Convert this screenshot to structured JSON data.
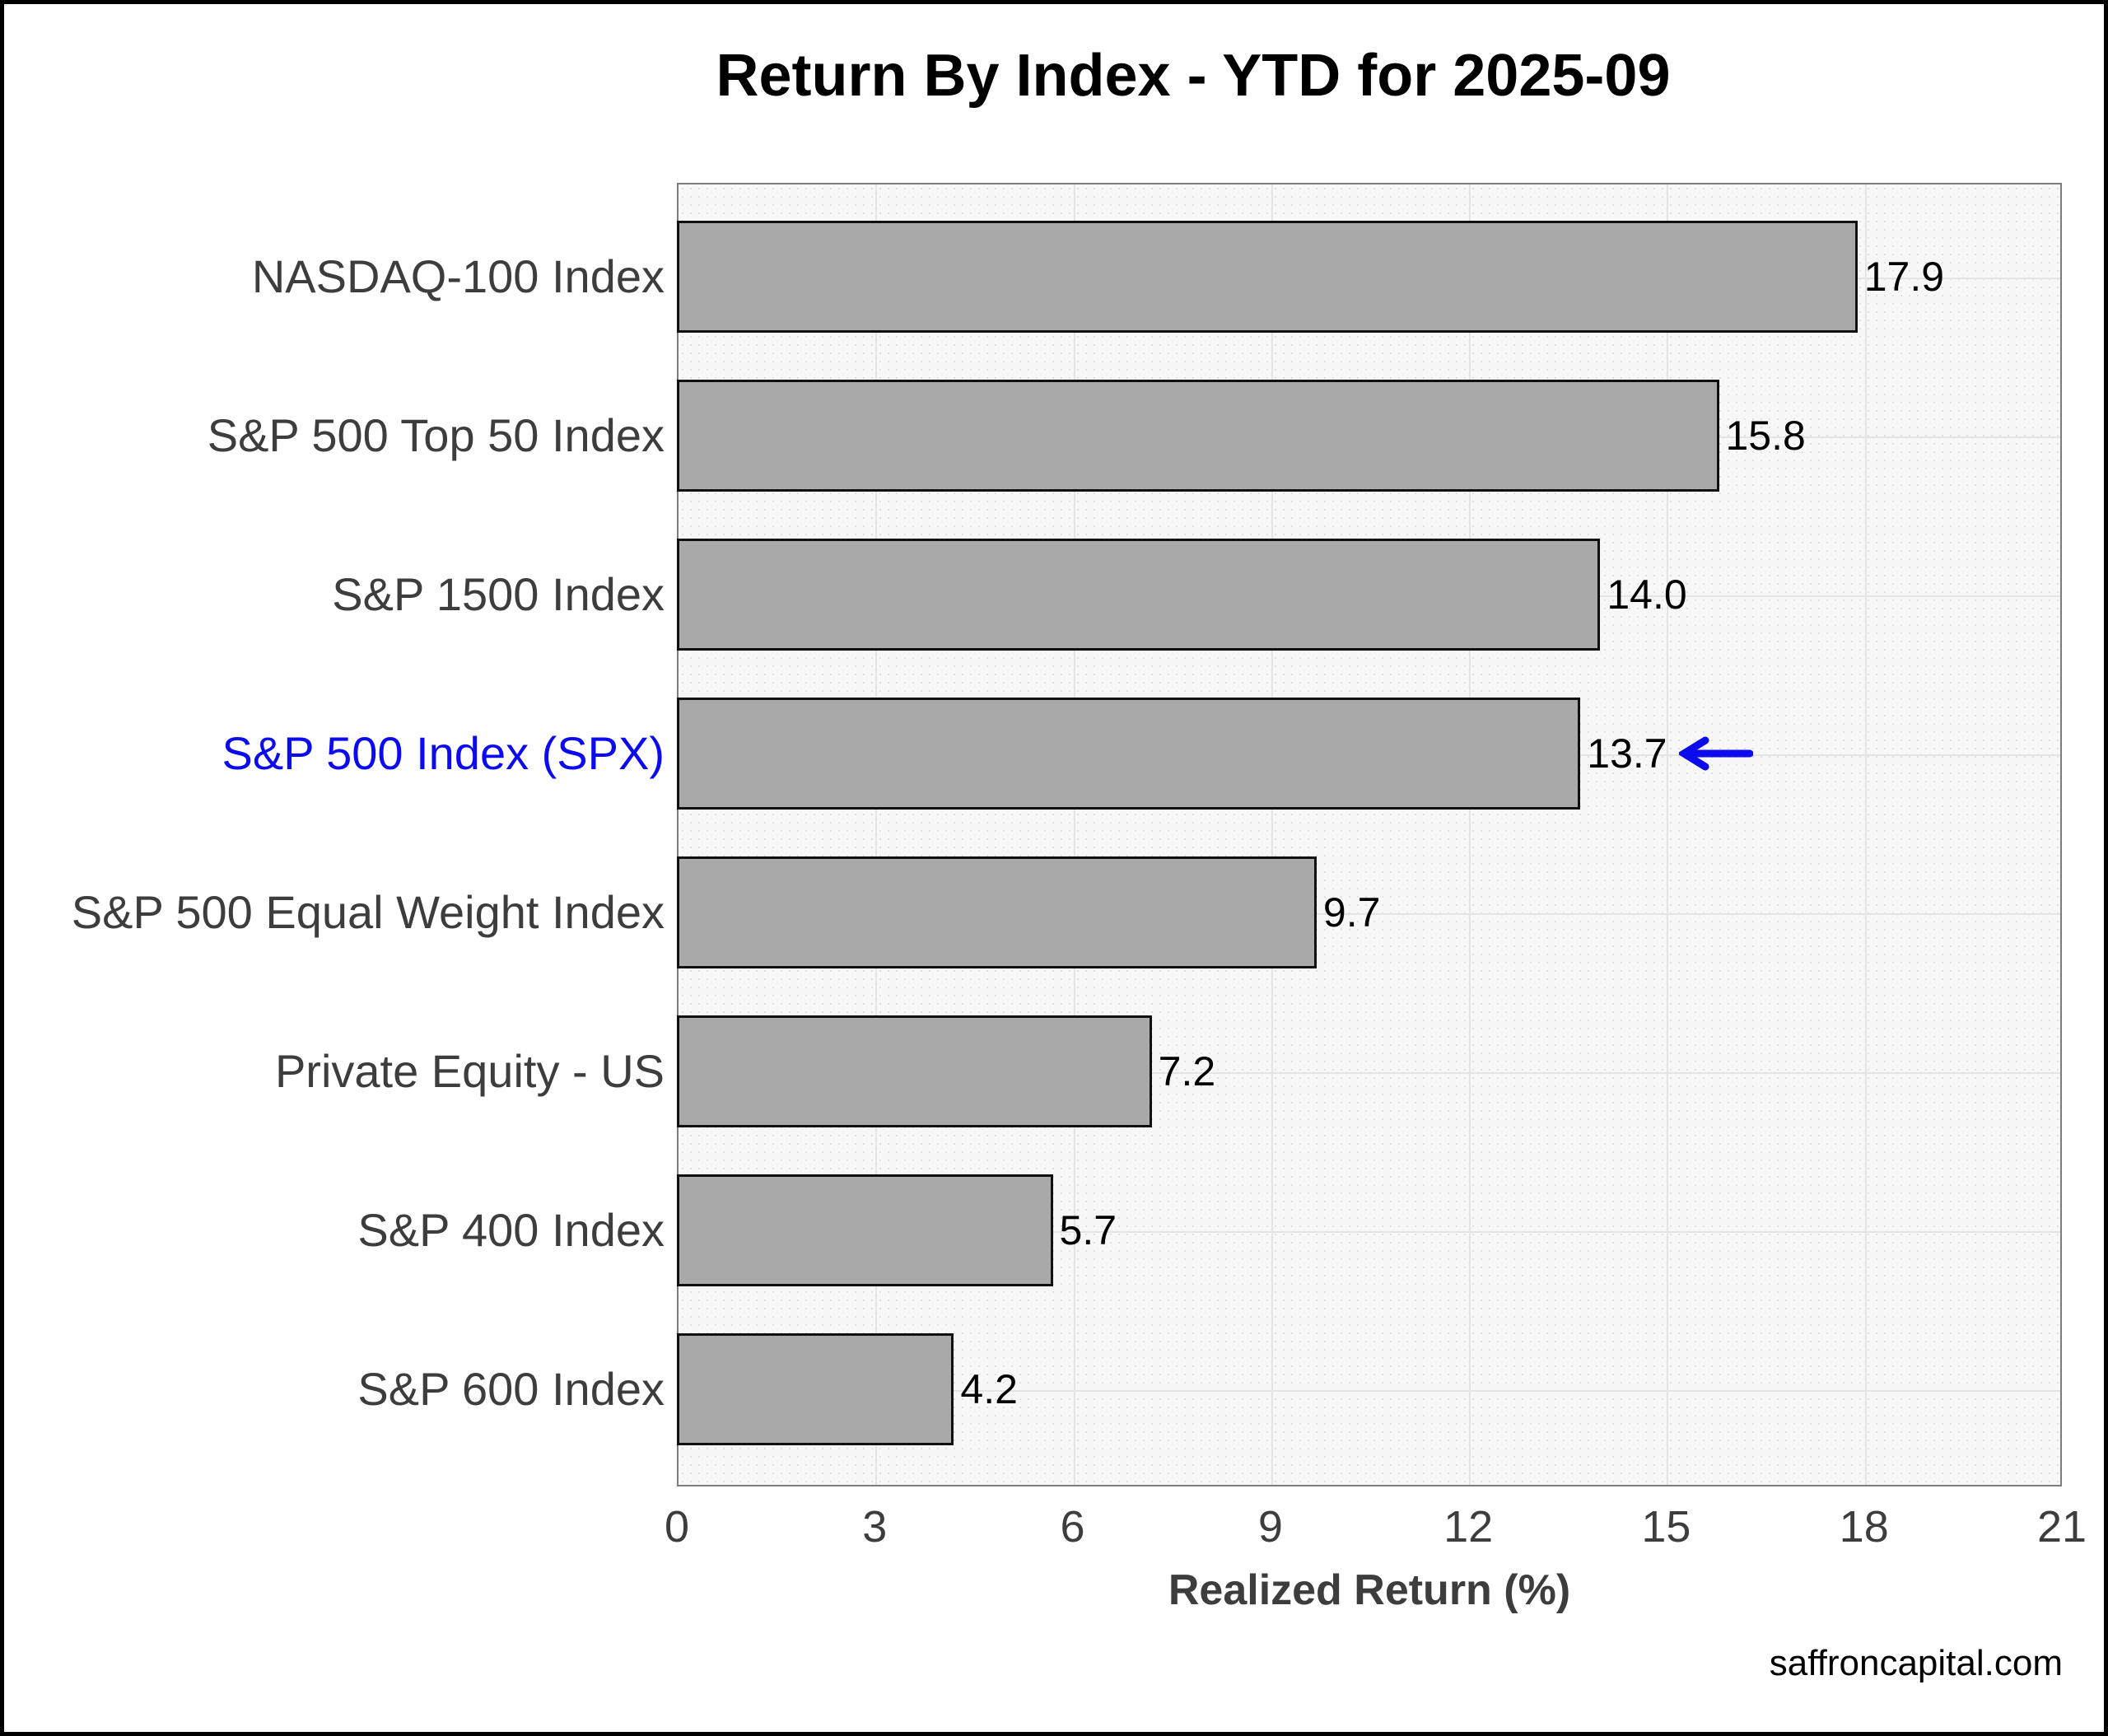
{
  "watermark": "saffroncapital.com",
  "chart_data": {
    "type": "bar",
    "orientation": "horizontal",
    "title": "Return By Index - YTD for 2025-09",
    "xlabel": "Realized Return (%)",
    "categories": [
      "NASDAQ-100 Index",
      "S&P 500 Top 50 Index",
      "S&P 1500 Index",
      "S&P 500 Index (SPX)",
      "S&P 500 Equal Weight Index",
      "Private Equity - US",
      "S&P 400 Index",
      "S&P 600 Index"
    ],
    "values": [
      17.9,
      15.8,
      14.0,
      13.7,
      9.7,
      7.2,
      5.7,
      4.2
    ],
    "value_labels": [
      "17.9",
      "15.8",
      "14.0",
      "13.7",
      "9.7",
      "7.2",
      "5.7",
      "4.2"
    ],
    "xlim": [
      0,
      21
    ],
    "xticks": [
      0,
      3,
      6,
      9,
      12,
      15,
      18,
      21
    ],
    "grid": true,
    "legend": "none",
    "bar_color": "#a9a9a9",
    "bar_border_color": "#101010",
    "plot_bg_color": "#f7f7f7",
    "gridline_color": "#e4e4e4",
    "label_color": "#3d3d3d",
    "highlight": {
      "category": "S&P 500 Index (SPX)",
      "index": 3,
      "color": "#0b0bee",
      "annotation": "left-arrow"
    }
  }
}
